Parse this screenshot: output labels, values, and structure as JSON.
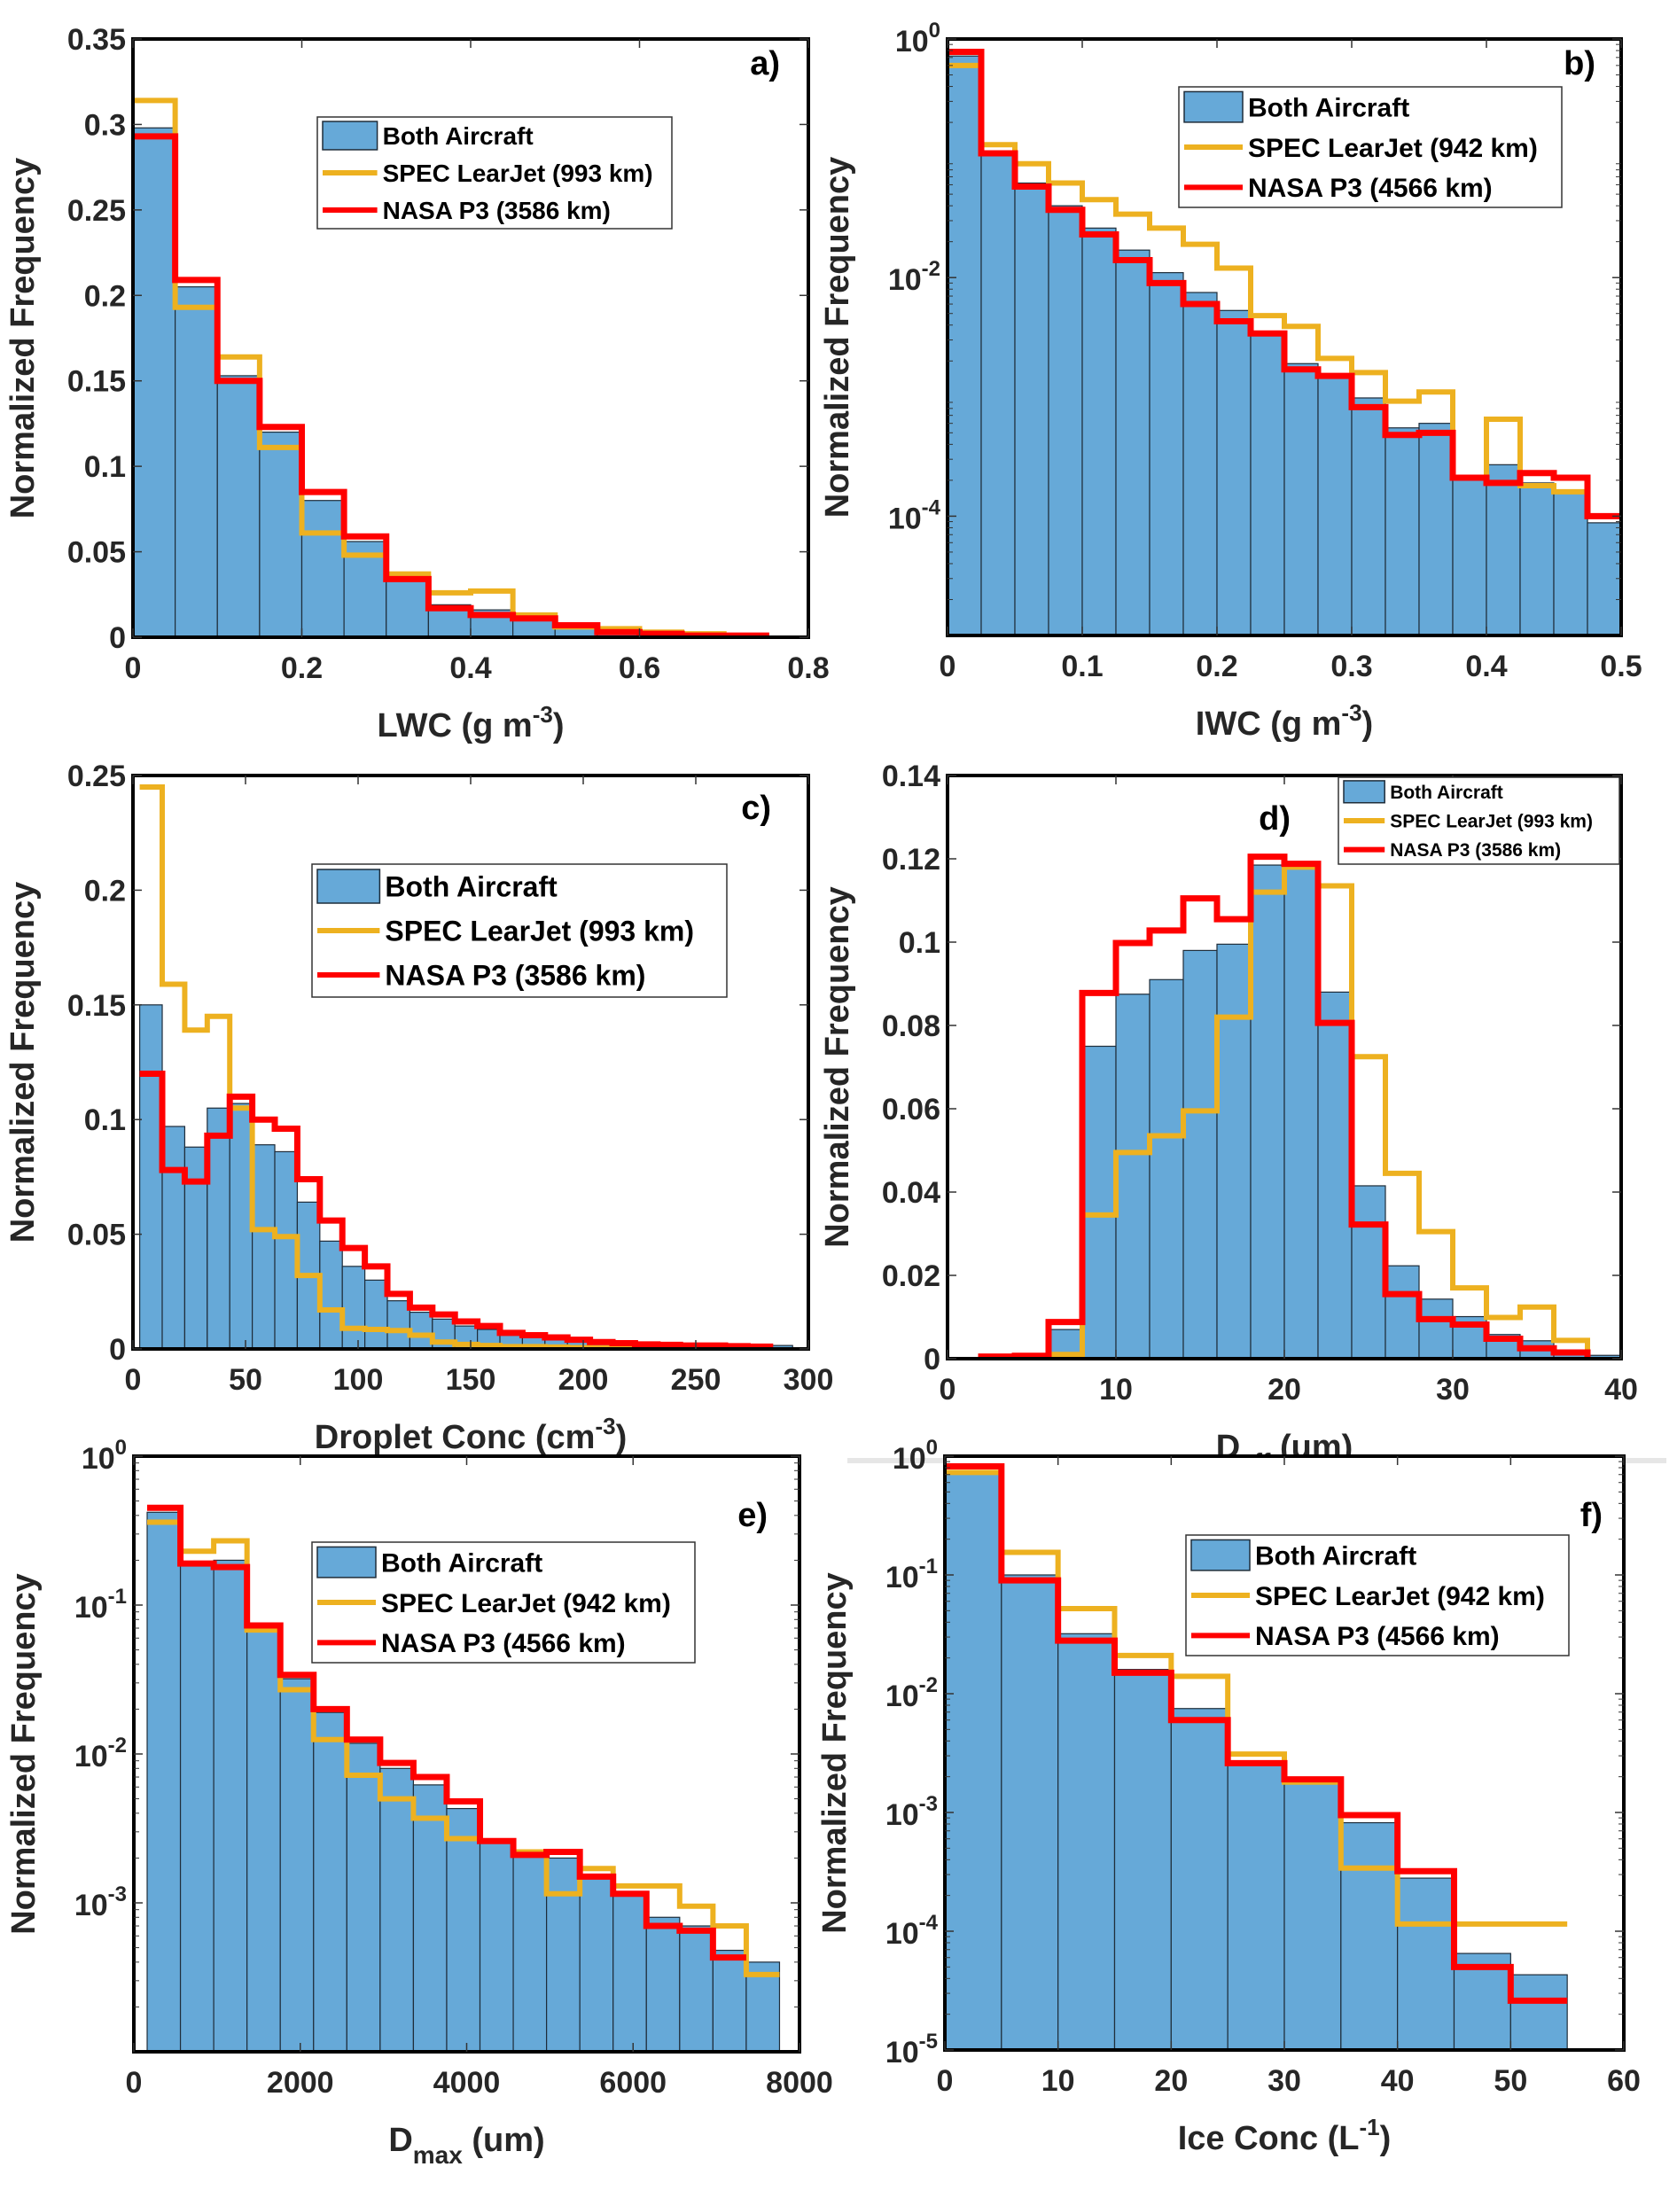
{
  "colors": {
    "bar_fill": "#66a9d8",
    "bar_edge": "#1f2d3a",
    "learjet": "#edb120",
    "p3": "#ff0000",
    "axes": "#000000"
  },
  "chart_data": [
    {
      "id": "a",
      "panel_label": "a)",
      "type": "bar",
      "scale": "linear",
      "xlabel": "LWC (g m",
      "xlabel_sup": "-3",
      "xlabel_tail": ")",
      "ylabel": "Normalized Frequency",
      "xlim": [
        0,
        0.8
      ],
      "ylim": [
        0,
        0.35
      ],
      "xticks": [
        0,
        0.2,
        0.4,
        0.6,
        0.8
      ],
      "xtick_labels": [
        "0",
        "0.2",
        "0.4",
        "0.6",
        "0.8"
      ],
      "yticks": [
        0,
        0.05,
        0.1,
        0.15,
        0.2,
        0.25,
        0.3,
        0.35
      ],
      "ytick_labels": [
        "0",
        "0.05",
        "0.1",
        "0.15",
        "0.2",
        "0.25",
        "0.3",
        "0.35"
      ],
      "bin_edges": [
        0,
        0.05,
        0.1,
        0.15,
        0.2,
        0.25,
        0.3,
        0.35,
        0.4,
        0.45,
        0.5,
        0.55,
        0.6,
        0.65,
        0.7,
        0.75
      ],
      "legend": {
        "position": "upper-center",
        "entries": [
          "Both Aircraft",
          "SPEC LearJet (993 km)",
          "NASA P3 (3586 km)"
        ]
      },
      "series": [
        {
          "name": "Both Aircraft",
          "kind": "bar",
          "values": [
            0.298,
            0.205,
            0.153,
            0.12,
            0.08,
            0.056,
            0.034,
            0.019,
            0.016,
            0.01,
            0.006,
            0.003,
            0.002,
            0.001,
            0.001
          ]
        },
        {
          "name": "SPEC LearJet (993 km)",
          "kind": "step",
          "values": [
            0.314,
            0.193,
            0.164,
            0.111,
            0.061,
            0.048,
            0.037,
            0.026,
            0.027,
            0.013,
            0.006,
            0.005,
            0.003,
            0.002,
            0.001
          ]
        },
        {
          "name": "NASA P3 (3586 km)",
          "kind": "step",
          "values": [
            0.293,
            0.209,
            0.15,
            0.123,
            0.085,
            0.059,
            0.034,
            0.017,
            0.013,
            0.011,
            0.007,
            0.003,
            0.002,
            0.001,
            0.001
          ]
        }
      ]
    },
    {
      "id": "b",
      "panel_label": "b)",
      "type": "bar",
      "scale": "log",
      "xlabel": "IWC (g m",
      "xlabel_sup": "-3",
      "xlabel_tail": ")",
      "ylabel": "Normalized Frequency",
      "xlim": [
        0,
        0.5
      ],
      "ylim": [
        1e-05,
        1
      ],
      "xticks": [
        0,
        0.1,
        0.2,
        0.3,
        0.4,
        0.5
      ],
      "xtick_labels": [
        "0",
        "0.1",
        "0.2",
        "0.3",
        "0.4",
        "0.5"
      ],
      "yticks": [
        0.0001,
        0.01,
        1
      ],
      "ytick_labels": [
        {
          "base": "10",
          "exp": "-4"
        },
        {
          "base": "10",
          "exp": "-2"
        },
        {
          "base": "10",
          "exp": "0"
        }
      ],
      "bin_edges": [
        0,
        0.025,
        0.05,
        0.075,
        0.1,
        0.125,
        0.15,
        0.175,
        0.2,
        0.225,
        0.25,
        0.275,
        0.3,
        0.325,
        0.35,
        0.375,
        0.4,
        0.425,
        0.45,
        0.475,
        0.5
      ],
      "legend": {
        "position": "upper-center",
        "entries": [
          "Both Aircraft",
          "SPEC LearJet (942 km)",
          "NASA P3 (4566 km)"
        ]
      },
      "series": [
        {
          "name": "Both Aircraft",
          "kind": "bar",
          "values": [
            0.72,
            0.105,
            0.062,
            0.04,
            0.026,
            0.017,
            0.011,
            0.0075,
            0.0053,
            0.0035,
            0.0019,
            0.0015,
            0.00098,
            0.00055,
            0.0006,
            0.00022,
            0.00027,
            0.00019,
            0.00016,
            8.8e-05
          ]
        },
        {
          "name": "SPEC LearJet (942 km)",
          "kind": "step",
          "values": [
            0.6,
            0.13,
            0.09,
            0.062,
            0.045,
            0.034,
            0.026,
            0.019,
            0.012,
            0.0048,
            0.0039,
            0.0021,
            0.0016,
            0.00092,
            0.0011,
            0.00021,
            0.00065,
            0.00018,
            0.00016,
            null
          ]
        },
        {
          "name": "NASA P3 (4566 km)",
          "kind": "step",
          "values": [
            0.78,
            0.11,
            0.058,
            0.037,
            0.023,
            0.014,
            0.009,
            0.006,
            0.0043,
            0.0034,
            0.0017,
            0.0015,
            0.00082,
            0.00048,
            0.0005,
            0.00021,
            0.00019,
            0.00023,
            0.00021,
            0.0001
          ]
        }
      ]
    },
    {
      "id": "c",
      "panel_label": "c)",
      "type": "bar",
      "scale": "linear",
      "xlabel": "Droplet Conc (cm",
      "xlabel_sup": "-3",
      "xlabel_tail": ")",
      "ylabel": "Normalized Frequency",
      "xlim": [
        0,
        300
      ],
      "ylim": [
        0,
        0.25
      ],
      "xticks": [
        0,
        50,
        100,
        150,
        200,
        250,
        300
      ],
      "xtick_labels": [
        "0",
        "50",
        "100",
        "150",
        "200",
        "250",
        "300"
      ],
      "yticks": [
        0,
        0.05,
        0.1,
        0.15,
        0.2,
        0.25
      ],
      "ytick_labels": [
        "0",
        "0.05",
        "0.1",
        "0.15",
        "0.2",
        "0.25"
      ],
      "bin_edges": [
        3,
        13,
        23,
        33,
        43,
        53,
        63,
        73,
        83,
        93,
        103,
        113,
        123,
        133,
        143,
        153,
        163,
        173,
        183,
        193,
        203,
        213,
        223,
        233,
        243,
        253,
        263,
        273,
        283,
        293
      ],
      "legend": {
        "position": "upper-center",
        "entries": [
          "Both Aircraft",
          "SPEC LearJet (993 km)",
          "NASA P3 (3586 km)"
        ]
      },
      "series": [
        {
          "name": "Both Aircraft",
          "kind": "bar",
          "values": [
            0.15,
            0.097,
            0.088,
            0.105,
            0.107,
            0.089,
            0.086,
            0.064,
            0.047,
            0.036,
            0.03,
            0.021,
            0.016,
            0.013,
            0.01,
            0.0085,
            0.006,
            0.005,
            0.004,
            0.003,
            0.0025,
            0.002,
            0.0015,
            0.0012,
            0.001,
            0.001,
            0.0008,
            0.0006,
            0.0015
          ]
        },
        {
          "name": "SPEC LearJet (993 km)",
          "kind": "step",
          "values": [
            0.245,
            0.159,
            0.139,
            0.145,
            0.105,
            0.052,
            0.049,
            0.032,
            0.017,
            0.009,
            0.0085,
            0.008,
            0.006,
            0.003,
            0.002,
            0.0015,
            0.001,
            0.001,
            0.0008,
            0.0006,
            0.0005,
            0.0004,
            0.0003,
            0.0003,
            0.0002,
            0.0002,
            0.0002,
            0.0001
          ]
        },
        {
          "name": "NASA P3 (3586 km)",
          "kind": "step",
          "values": [
            0.12,
            0.078,
            0.073,
            0.093,
            0.11,
            0.1,
            0.096,
            0.074,
            0.056,
            0.044,
            0.036,
            0.024,
            0.018,
            0.015,
            0.012,
            0.01,
            0.007,
            0.006,
            0.005,
            0.004,
            0.003,
            0.0025,
            0.002,
            0.0018,
            0.0015,
            0.0015,
            0.0012,
            0.001
          ]
        }
      ]
    },
    {
      "id": "d",
      "panel_label": "d)",
      "type": "bar",
      "scale": "linear",
      "xlabel": "D",
      "xlabel_sub": "eff",
      "xlabel_tail": " (um)",
      "ylabel": "Normalized Frequency",
      "xlim": [
        0,
        40
      ],
      "ylim": [
        0,
        0.14
      ],
      "xticks": [
        0,
        10,
        20,
        30,
        40
      ],
      "xtick_labels": [
        "0",
        "10",
        "20",
        "30",
        "40"
      ],
      "yticks": [
        0,
        0.02,
        0.04,
        0.06,
        0.08,
        0.1,
        0.12,
        0.14
      ],
      "ytick_labels": [
        "0",
        "0.02",
        "0.04",
        "0.06",
        "0.08",
        "0.1",
        "0.12",
        "0.14"
      ],
      "bin_edges": [
        0,
        2,
        4,
        6,
        8,
        10,
        12,
        14,
        16,
        18,
        20,
        22,
        24,
        26,
        28,
        30,
        32,
        34,
        36,
        38,
        40
      ],
      "legend": {
        "position": "top-right",
        "entries": [
          "Both Aircraft",
          "SPEC LearJet (993 km)",
          "NASA P3 (3586 km)"
        ]
      },
      "series": [
        {
          "name": "Both Aircraft",
          "kind": "bar",
          "values": [
            0.0003,
            0.0003,
            0.0005,
            0.007,
            0.075,
            0.0875,
            0.091,
            0.098,
            0.0995,
            0.1185,
            0.118,
            0.088,
            0.0415,
            0.0223,
            0.0143,
            0.0101,
            0.0058,
            0.0043,
            0.0018,
            0.0008
          ]
        },
        {
          "name": "SPEC LearJet (993 km)",
          "kind": "step",
          "values": [
            null,
            null,
            null,
            0.001,
            0.0345,
            0.0495,
            0.0535,
            0.0595,
            0.082,
            0.112,
            0.118,
            0.1135,
            0.0725,
            0.0445,
            0.0305,
            0.017,
            0.0099,
            0.0124,
            0.0044,
            null
          ]
        },
        {
          "name": "NASA P3 (3586 km)",
          "kind": "step",
          "values": [
            null,
            0.0005,
            0.0007,
            0.0088,
            0.0878,
            0.0998,
            0.1028,
            0.1105,
            0.1055,
            0.1205,
            0.1188,
            0.0806,
            0.0322,
            0.0155,
            0.0095,
            0.0082,
            0.0048,
            0.0025,
            0.0015,
            null
          ]
        }
      ]
    },
    {
      "id": "e",
      "panel_label": "e)",
      "type": "bar",
      "scale": "log",
      "xlabel": "D",
      "xlabel_sub": "max",
      "xlabel_tail": " (um)",
      "ylabel": "Normalized Frequency",
      "xlim": [
        0,
        8000
      ],
      "ylim": [
        0.0001,
        1
      ],
      "xticks": [
        0,
        2000,
        4000,
        6000,
        8000
      ],
      "xtick_labels": [
        "0",
        "2000",
        "4000",
        "6000",
        "8000"
      ],
      "yticks": [
        0.001,
        0.01,
        0.1,
        1
      ],
      "ytick_labels": [
        {
          "base": "10",
          "exp": "-3"
        },
        {
          "base": "10",
          "exp": "-2"
        },
        {
          "base": "10",
          "exp": "-1"
        },
        {
          "base": "10",
          "exp": "0"
        }
      ],
      "bin_edges": [
        160,
        560,
        960,
        1360,
        1760,
        2160,
        2560,
        2960,
        3360,
        3760,
        4160,
        4560,
        4960,
        5360,
        5760,
        6160,
        6560,
        6960,
        7360,
        7760
      ],
      "legend": {
        "position": "upper-center",
        "entries": [
          "Both Aircraft",
          "SPEC LearJet (942 km)",
          "NASA P3 (4566 km)"
        ]
      },
      "series": [
        {
          "name": "Both Aircraft",
          "kind": "bar",
          "values": [
            0.42,
            0.19,
            0.2,
            0.068,
            0.032,
            0.019,
            0.0118,
            0.008,
            0.0062,
            0.0043,
            0.0026,
            0.0021,
            0.002,
            0.0015,
            0.00115,
            0.0008,
            0.0007,
            0.00048,
            0.0004
          ]
        },
        {
          "name": "SPEC LearJet (942 km)",
          "kind": "step",
          "values": [
            0.36,
            0.23,
            0.27,
            0.068,
            0.027,
            0.0125,
            0.0072,
            0.005,
            0.0037,
            0.0027,
            0.0026,
            0.0022,
            0.00115,
            0.0017,
            0.0013,
            0.0013,
            0.00095,
            0.0007,
            0.00033
          ]
        },
        {
          "name": "NASA P3 (4566 km)",
          "kind": "step",
          "values": [
            0.45,
            0.19,
            0.18,
            0.073,
            0.034,
            0.02,
            0.0125,
            0.0087,
            0.007,
            0.0048,
            0.0026,
            0.0021,
            0.0022,
            0.0015,
            0.00115,
            0.0007,
            0.00065,
            0.00043,
            null
          ]
        }
      ]
    },
    {
      "id": "f",
      "panel_label": "f)",
      "type": "bar",
      "scale": "log",
      "xlabel": "Ice Conc  (L",
      "xlabel_sup": "-1",
      "xlabel_tail": ")",
      "ylabel": "Normalized Frequency",
      "xlim": [
        0,
        60
      ],
      "ylim": [
        1e-05,
        1
      ],
      "xticks": [
        0,
        10,
        20,
        30,
        40,
        50,
        60
      ],
      "xtick_labels": [
        "0",
        "10",
        "20",
        "30",
        "40",
        "50",
        "60"
      ],
      "yticks": [
        1e-05,
        0.0001,
        0.001,
        0.01,
        0.1,
        1
      ],
      "ytick_labels": [
        {
          "base": "10",
          "exp": "-5"
        },
        {
          "base": "10",
          "exp": "-4"
        },
        {
          "base": "10",
          "exp": "-3"
        },
        {
          "base": "10",
          "exp": "-2"
        },
        {
          "base": "10",
          "exp": "-1"
        },
        {
          "base": "10",
          "exp": "0"
        }
      ],
      "bin_edges": [
        0,
        5,
        10,
        15,
        20,
        25,
        30,
        35,
        40,
        45,
        50,
        55
      ],
      "legend": {
        "position": "upper-center",
        "entries": [
          "Both Aircraft",
          "SPEC LearJet (942 km)",
          "NASA P3 (4566 km)"
        ]
      },
      "series": [
        {
          "name": "Both Aircraft",
          "kind": "bar",
          "values": [
            0.72,
            0.1,
            0.032,
            0.016,
            0.0075,
            0.0027,
            0.0018,
            0.00082,
            0.00028,
            6.5e-05,
            4.3e-05
          ]
        },
        {
          "name": "SPEC LearJet (942 km)",
          "kind": "step",
          "values": [
            0.73,
            0.155,
            0.052,
            0.021,
            0.014,
            0.0031,
            0.0018,
            0.00034,
            0.000115,
            0.000115,
            0.000115
          ]
        },
        {
          "name": "NASA P3 (4566 km)",
          "kind": "step",
          "values": [
            0.82,
            0.09,
            0.028,
            0.015,
            0.006,
            0.0026,
            0.0019,
            0.00095,
            0.00032,
            5e-05,
            2.6e-05
          ]
        }
      ]
    }
  ]
}
